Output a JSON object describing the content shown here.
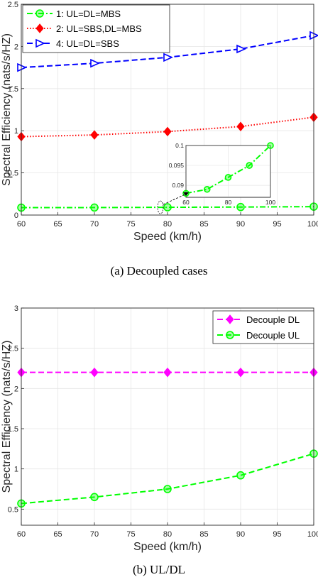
{
  "chart_data": [
    {
      "type": "line",
      "caption": "(a)  Decoupled cases",
      "xlabel": "Speed (km/h)",
      "ylabel": "Spectral Efficiency (nats/s/HZ)",
      "xlim": [
        60,
        100
      ],
      "ylim": [
        0,
        2.5
      ],
      "xticks": [
        "60",
        "65",
        "70",
        "75",
        "80",
        "85",
        "90",
        "95",
        "100"
      ],
      "yticks": [
        "0",
        "0.5",
        "1",
        "1.5",
        "2",
        "2.5"
      ],
      "grid": true,
      "legend_position": "top-left",
      "x": [
        60,
        70,
        80,
        90,
        100
      ],
      "series": [
        {
          "name": "1: UL=DL=MBS",
          "values": [
            0.088,
            0.089,
            0.092,
            0.095,
            0.1
          ],
          "color": "#00ff00",
          "marker": "circle",
          "dash": "dash-dot"
        },
        {
          "name": "2: UL=SBS,DL=MBS",
          "values": [
            0.93,
            0.95,
            0.99,
            1.05,
            1.16
          ],
          "color": "#ff0000",
          "marker": "diamond",
          "dash": "dotted"
        },
        {
          "name": "4: UL=DL=SBS",
          "values": [
            1.75,
            1.8,
            1.87,
            1.97,
            2.13
          ],
          "color": "#0000ff",
          "marker": "triangle-right",
          "dash": "dashed"
        }
      ],
      "inset": {
        "xlim": [
          60,
          100
        ],
        "ylim": [
          0.087,
          0.1
        ],
        "xticks": [
          "60",
          "80",
          "100"
        ],
        "yticks": [
          "0.09",
          "0.095",
          "0.1"
        ],
        "series_index": 0
      }
    },
    {
      "type": "line",
      "caption": "(b)  UL/DL",
      "xlabel": "Speed (km/h)",
      "ylabel": "Spectral Efficiency (nats/s/HZ)",
      "xlim": [
        60,
        100
      ],
      "ylim": [
        0.3,
        3
      ],
      "xticks": [
        "60",
        "65",
        "70",
        "75",
        "80",
        "85",
        "90",
        "95",
        "100"
      ],
      "yticks": [
        "0.5",
        "1",
        "1.5",
        "2",
        "2.5",
        "3"
      ],
      "grid": true,
      "legend_position": "top-right",
      "x": [
        60,
        70,
        80,
        90,
        100
      ],
      "series": [
        {
          "name": "Decouple DL",
          "values": [
            2.2,
            2.2,
            2.2,
            2.2,
            2.2
          ],
          "color": "#ff00ff",
          "marker": "diamond",
          "dash": "dashed"
        },
        {
          "name": "Decouple UL",
          "values": [
            0.57,
            0.65,
            0.75,
            0.92,
            1.19
          ],
          "color": "#00ff00",
          "marker": "circle",
          "dash": "dashed"
        }
      ]
    }
  ]
}
